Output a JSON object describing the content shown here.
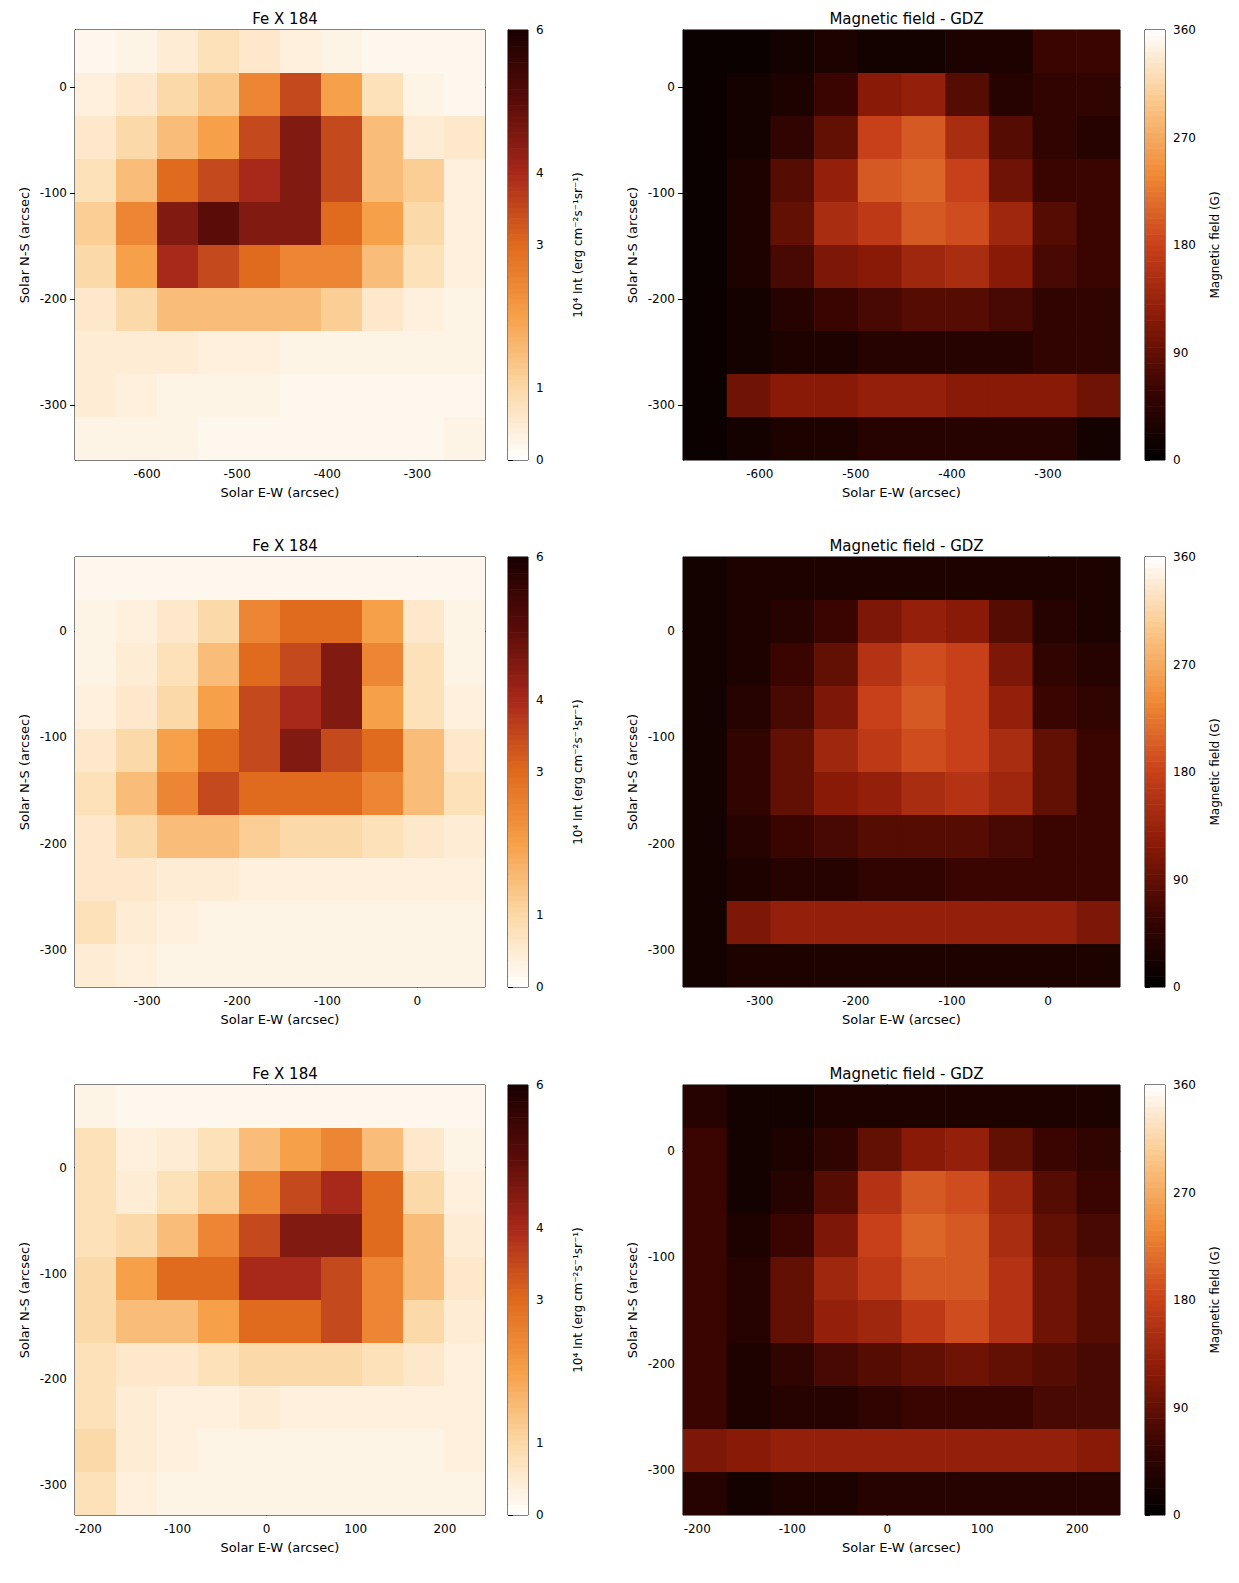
{
  "chart_data": [
    {
      "type": "heatmap",
      "title": "Fe X 184",
      "x_label": "Solar E-W (arcsec)",
      "y_label": "Solar N-S (arcsec)",
      "xlim": [
        -680,
        -225
      ],
      "ylim": [
        -352,
        54
      ],
      "xticks": [
        -600,
        -500,
        -400,
        -300
      ],
      "yticks": [
        -300,
        -200,
        -100,
        0
      ],
      "cells": [
        [
          0.2,
          0.3,
          0.5,
          0.8,
          0.6,
          0.4,
          0.3,
          0.2,
          0.2,
          0.2
        ],
        [
          0.4,
          0.6,
          1.0,
          1.3,
          2.5,
          3.5,
          2.0,
          0.8,
          0.3,
          0.2
        ],
        [
          0.6,
          1.0,
          1.5,
          2.0,
          3.5,
          4.5,
          3.5,
          1.5,
          0.5,
          0.6
        ],
        [
          0.8,
          1.5,
          3.0,
          3.5,
          4.0,
          4.5,
          3.5,
          1.5,
          1.2,
          0.4
        ],
        [
          1.2,
          2.5,
          4.5,
          5.0,
          4.5,
          4.5,
          3.0,
          2.0,
          1.0,
          0.4
        ],
        [
          1.0,
          2.0,
          4.0,
          3.5,
          3.0,
          2.5,
          2.5,
          1.5,
          0.8,
          0.4
        ],
        [
          0.6,
          1.0,
          1.5,
          1.5,
          1.5,
          1.5,
          1.2,
          0.6,
          0.4,
          0.3
        ],
        [
          0.5,
          0.5,
          0.5,
          0.4,
          0.4,
          0.3,
          0.3,
          0.3,
          0.3,
          0.3
        ],
        [
          0.5,
          0.4,
          0.3,
          0.3,
          0.3,
          0.2,
          0.2,
          0.2,
          0.2,
          0.2
        ],
        [
          0.3,
          0.3,
          0.3,
          0.2,
          0.2,
          0.2,
          0.2,
          0.2,
          0.2,
          0.3
        ]
      ],
      "colorbar": {
        "label": "10⁴ Int (erg cm⁻²s⁻¹sr⁻¹)",
        "range": [
          0,
          6
        ],
        "ticks": [
          0,
          1,
          3,
          4,
          6
        ],
        "colors": [
          "#ffffff",
          "#fcd9a8",
          "#f7a04a",
          "#e06a1e",
          "#a8281a",
          "#5a0c08",
          "#1a0000"
        ]
      }
    },
    {
      "type": "heatmap",
      "title": "Magnetic field - GDZ",
      "x_label": "Solar E-W (arcsec)",
      "y_label": "Solar N-S (arcsec)",
      "xlim": [
        -680,
        -225
      ],
      "ylim": [
        -352,
        54
      ],
      "xticks": [
        -600,
        -500,
        -400,
        -300
      ],
      "yticks": [
        -300,
        -200,
        -100,
        0
      ],
      "cells": [
        [
          10,
          10,
          20,
          30,
          20,
          20,
          30,
          30,
          60,
          60
        ],
        [
          10,
          20,
          30,
          60,
          120,
          130,
          80,
          40,
          50,
          50
        ],
        [
          10,
          20,
          50,
          90,
          180,
          200,
          150,
          80,
          50,
          40
        ],
        [
          10,
          30,
          80,
          130,
          200,
          210,
          180,
          100,
          60,
          60
        ],
        [
          10,
          30,
          90,
          150,
          170,
          200,
          190,
          140,
          80,
          60
        ],
        [
          10,
          30,
          70,
          110,
          120,
          140,
          150,
          120,
          70,
          60
        ],
        [
          10,
          20,
          40,
          60,
          70,
          80,
          80,
          70,
          50,
          50
        ],
        [
          10,
          20,
          30,
          30,
          40,
          40,
          40,
          40,
          50,
          50
        ],
        [
          10,
          100,
          120,
          120,
          130,
          130,
          120,
          120,
          120,
          100
        ],
        [
          10,
          20,
          30,
          30,
          40,
          40,
          40,
          40,
          40,
          20
        ]
      ],
      "colorbar": {
        "label": "Magnetic field (G)",
        "range": [
          0,
          360
        ],
        "ticks": [
          0,
          90,
          180,
          270,
          360
        ],
        "colors": [
          "#000000",
          "#3a0500",
          "#8a1a08",
          "#c8401a",
          "#f08a36",
          "#fbc88a",
          "#ffffff"
        ]
      }
    },
    {
      "type": "heatmap",
      "title": "Fe X 184",
      "x_label": "Solar E-W (arcsec)",
      "y_label": "Solar N-S (arcsec)",
      "xlim": [
        -380,
        75
      ],
      "ylim": [
        -335,
        70
      ],
      "xticks": [
        -300,
        -200,
        -100,
        0
      ],
      "yticks": [
        -300,
        -200,
        -100,
        0
      ],
      "cells": [
        [
          0.2,
          0.2,
          0.2,
          0.2,
          0.2,
          0.2,
          0.2,
          0.2,
          0.2,
          0.2
        ],
        [
          0.3,
          0.4,
          0.6,
          1.0,
          2.5,
          3.0,
          3.0,
          2.0,
          0.6,
          0.3
        ],
        [
          0.3,
          0.5,
          0.8,
          1.5,
          3.0,
          3.5,
          4.5,
          2.5,
          0.8,
          0.3
        ],
        [
          0.4,
          0.6,
          1.0,
          2.0,
          3.5,
          4.0,
          4.5,
          2.0,
          0.8,
          0.4
        ],
        [
          0.6,
          1.0,
          2.0,
          3.0,
          3.5,
          4.5,
          3.5,
          3.0,
          1.5,
          0.6
        ],
        [
          0.8,
          1.5,
          2.5,
          3.5,
          3.0,
          3.0,
          3.0,
          2.5,
          1.5,
          0.8
        ],
        [
          0.6,
          1.0,
          1.5,
          1.5,
          1.2,
          1.0,
          1.0,
          0.8,
          0.6,
          0.5
        ],
        [
          0.6,
          0.6,
          0.5,
          0.5,
          0.4,
          0.4,
          0.4,
          0.4,
          0.4,
          0.4
        ],
        [
          0.8,
          0.5,
          0.4,
          0.3,
          0.3,
          0.3,
          0.3,
          0.3,
          0.3,
          0.3
        ],
        [
          0.5,
          0.4,
          0.3,
          0.3,
          0.3,
          0.3,
          0.3,
          0.3,
          0.3,
          0.3
        ]
      ],
      "colorbar": {
        "label": "10⁴ Int (erg cm⁻²s⁻¹sr⁻¹)",
        "range": [
          0,
          6
        ],
        "ticks": [
          0,
          1,
          3,
          4,
          6
        ],
        "colors": [
          "#ffffff",
          "#fcd9a8",
          "#f7a04a",
          "#e06a1e",
          "#a8281a",
          "#5a0c08",
          "#1a0000"
        ]
      }
    },
    {
      "type": "heatmap",
      "title": "Magnetic field - GDZ",
      "x_label": "Solar E-W (arcsec)",
      "y_label": "Solar N-S (arcsec)",
      "xlim": [
        -380,
        75
      ],
      "ylim": [
        -335,
        70
      ],
      "xticks": [
        -300,
        -200,
        -100,
        0
      ],
      "yticks": [
        -300,
        -200,
        -100,
        0
      ],
      "cells": [
        [
          20,
          30,
          30,
          30,
          30,
          30,
          30,
          30,
          30,
          30
        ],
        [
          20,
          30,
          40,
          60,
          110,
          130,
          120,
          80,
          40,
          30
        ],
        [
          20,
          30,
          60,
          90,
          160,
          190,
          180,
          110,
          50,
          40
        ],
        [
          20,
          40,
          70,
          110,
          180,
          200,
          180,
          130,
          60,
          50
        ],
        [
          20,
          50,
          90,
          140,
          170,
          190,
          180,
          150,
          90,
          60
        ],
        [
          20,
          50,
          90,
          120,
          130,
          150,
          160,
          140,
          90,
          60
        ],
        [
          20,
          40,
          60,
          70,
          80,
          80,
          80,
          70,
          60,
          60
        ],
        [
          20,
          30,
          40,
          40,
          50,
          50,
          60,
          60,
          60,
          60
        ],
        [
          20,
          110,
          130,
          130,
          130,
          130,
          130,
          130,
          130,
          110
        ],
        [
          20,
          30,
          30,
          30,
          30,
          30,
          30,
          30,
          30,
          30
        ]
      ],
      "colorbar": {
        "label": "Magnetic field (G)",
        "range": [
          0,
          360
        ],
        "ticks": [
          0,
          90,
          180,
          270,
          360
        ],
        "colors": [
          "#000000",
          "#3a0500",
          "#8a1a08",
          "#c8401a",
          "#f08a36",
          "#fbc88a",
          "#ffffff"
        ]
      }
    },
    {
      "type": "heatmap",
      "title": "Fe X 184",
      "x_label": "Solar E-W (arcsec)",
      "y_label": "Solar N-S (arcsec)",
      "xlim": [
        -215,
        245
      ],
      "ylim": [
        -328,
        78
      ],
      "xticks": [
        -200,
        -100,
        0,
        100,
        200
      ],
      "yticks": [
        -300,
        -200,
        -100,
        0
      ],
      "cells": [
        [
          0.3,
          0.2,
          0.2,
          0.2,
          0.2,
          0.2,
          0.2,
          0.2,
          0.2,
          0.2
        ],
        [
          0.8,
          0.4,
          0.5,
          0.8,
          1.5,
          2.0,
          2.5,
          1.5,
          0.6,
          0.3
        ],
        [
          0.8,
          0.5,
          0.8,
          1.2,
          2.5,
          3.5,
          4.0,
          3.0,
          1.0,
          0.4
        ],
        [
          0.8,
          1.0,
          1.5,
          2.5,
          3.5,
          4.5,
          4.5,
          3.0,
          1.5,
          0.5
        ],
        [
          1.0,
          2.0,
          3.0,
          3.0,
          4.0,
          4.0,
          3.5,
          2.5,
          1.5,
          0.6
        ],
        [
          1.0,
          1.5,
          1.5,
          2.0,
          3.0,
          3.0,
          3.5,
          2.5,
          1.0,
          0.5
        ],
        [
          0.8,
          0.6,
          0.6,
          0.8,
          1.0,
          1.0,
          1.0,
          0.8,
          0.6,
          0.4
        ],
        [
          0.8,
          0.5,
          0.4,
          0.4,
          0.5,
          0.4,
          0.4,
          0.4,
          0.4,
          0.4
        ],
        [
          1.0,
          0.5,
          0.4,
          0.3,
          0.3,
          0.3,
          0.3,
          0.3,
          0.3,
          0.4
        ],
        [
          0.8,
          0.4,
          0.3,
          0.3,
          0.3,
          0.3,
          0.3,
          0.3,
          0.3,
          0.3
        ]
      ],
      "colorbar": {
        "label": "10⁴ Int (erg cm⁻²s⁻¹sr⁻¹)",
        "range": [
          0,
          6
        ],
        "ticks": [
          0,
          1,
          3,
          4,
          6
        ],
        "colors": [
          "#ffffff",
          "#fcd9a8",
          "#f7a04a",
          "#e06a1e",
          "#a8281a",
          "#5a0c08",
          "#1a0000"
        ]
      }
    },
    {
      "type": "heatmap",
      "title": "Magnetic field - GDZ",
      "x_label": "Solar E-W (arcsec)",
      "y_label": "Solar N-S (arcsec)",
      "xlim": [
        -215,
        245
      ],
      "ylim": [
        -342,
        62
      ],
      "xticks": [
        -200,
        -100,
        0,
        100,
        200
      ],
      "yticks": [
        -300,
        -200,
        -100,
        0
      ],
      "cells": [
        [
          40,
          20,
          20,
          30,
          30,
          30,
          30,
          30,
          30,
          30
        ],
        [
          60,
          20,
          30,
          50,
          90,
          120,
          130,
          90,
          60,
          50
        ],
        [
          60,
          20,
          40,
          80,
          160,
          200,
          190,
          140,
          80,
          60
        ],
        [
          60,
          30,
          60,
          110,
          180,
          210,
          200,
          150,
          90,
          70
        ],
        [
          60,
          40,
          90,
          140,
          170,
          200,
          200,
          160,
          100,
          80
        ],
        [
          60,
          40,
          90,
          130,
          140,
          170,
          190,
          160,
          100,
          80
        ],
        [
          60,
          30,
          50,
          70,
          80,
          90,
          100,
          90,
          80,
          70
        ],
        [
          60,
          30,
          40,
          40,
          50,
          60,
          60,
          60,
          70,
          70
        ],
        [
          110,
          120,
          130,
          130,
          130,
          130,
          130,
          130,
          130,
          120
        ],
        [
          40,
          20,
          30,
          30,
          40,
          40,
          40,
          40,
          40,
          40
        ]
      ],
      "colorbar": {
        "label": "Magnetic field (G)",
        "range": [
          0,
          360
        ],
        "ticks": [
          0,
          90,
          180,
          270,
          360
        ],
        "colors": [
          "#000000",
          "#3a0500",
          "#8a1a08",
          "#c8401a",
          "#f08a36",
          "#fbc88a",
          "#ffffff"
        ]
      }
    }
  ]
}
